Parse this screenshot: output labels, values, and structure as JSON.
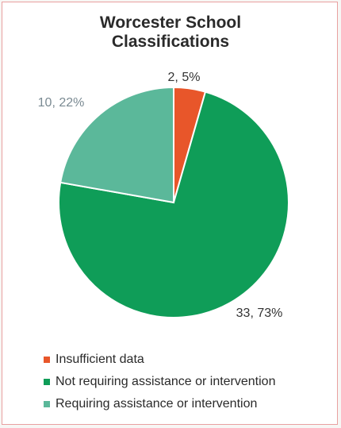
{
  "chart_data": {
    "type": "pie",
    "title_lines": [
      "Worcester School",
      "Classifications"
    ],
    "slices": [
      {
        "name": "Insufficient data",
        "value": 2,
        "label": "2, 5%",
        "color": "#e8562a"
      },
      {
        "name": "Not requiring assistance or intervention",
        "value": 33,
        "label": "33, 73%",
        "color": "#0f9d58"
      },
      {
        "name": "Requiring assistance or intervention",
        "value": 10,
        "label": "10, 22%",
        "color": "#5bb89a"
      }
    ],
    "legend_position": "bottom"
  }
}
